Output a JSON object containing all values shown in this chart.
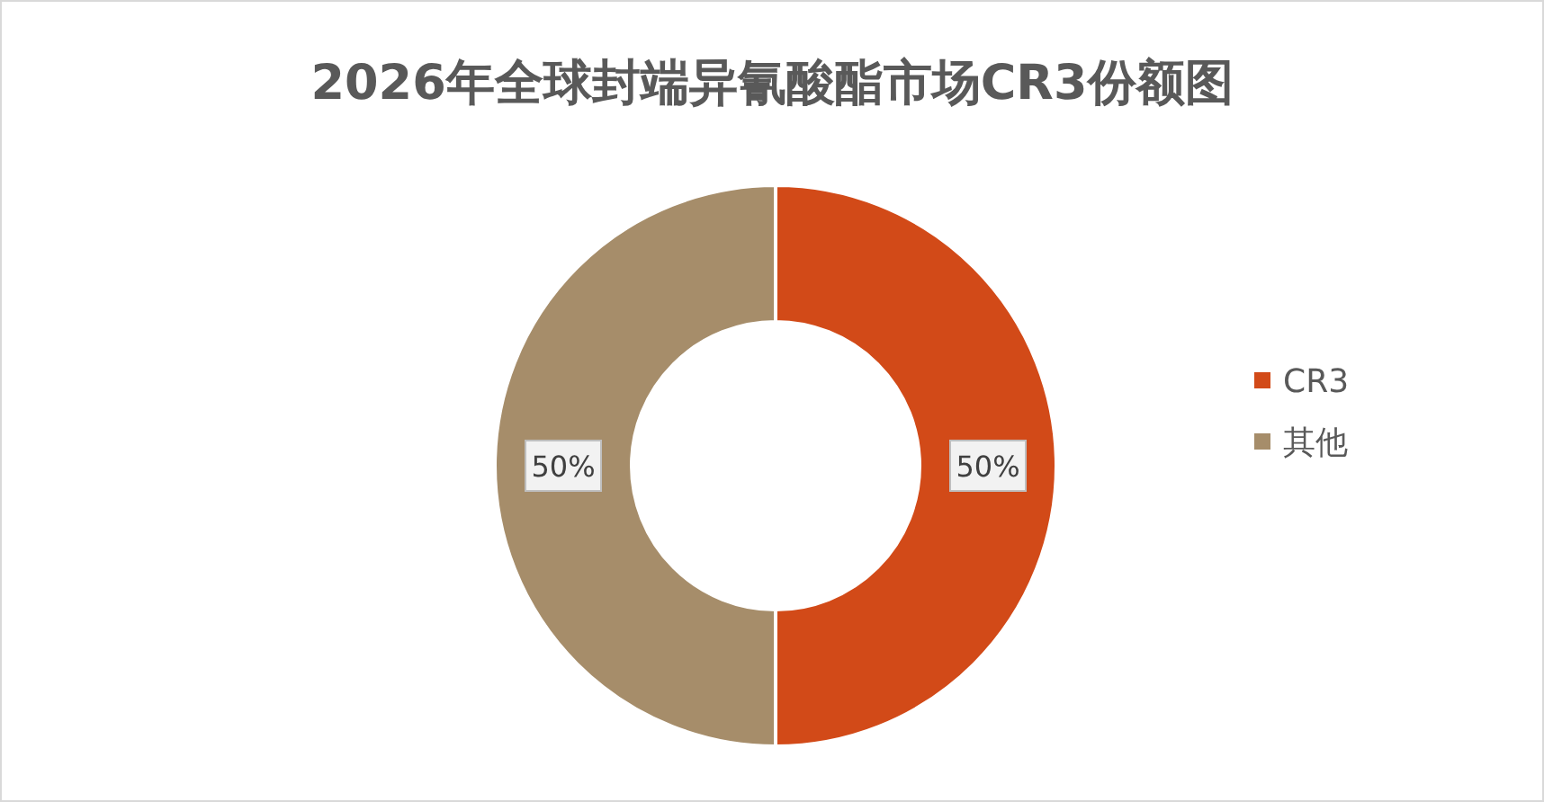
{
  "chart_data": {
    "type": "donut",
    "title": "2026年全球封端异氰酸酯市场CR3份额图",
    "categories": [
      "CR3",
      "其他"
    ],
    "values": [
      50,
      50
    ],
    "colors": [
      "#d24a18",
      "#a68d6a"
    ],
    "value_labels": [
      "50%",
      "50%"
    ],
    "legend": "right"
  }
}
